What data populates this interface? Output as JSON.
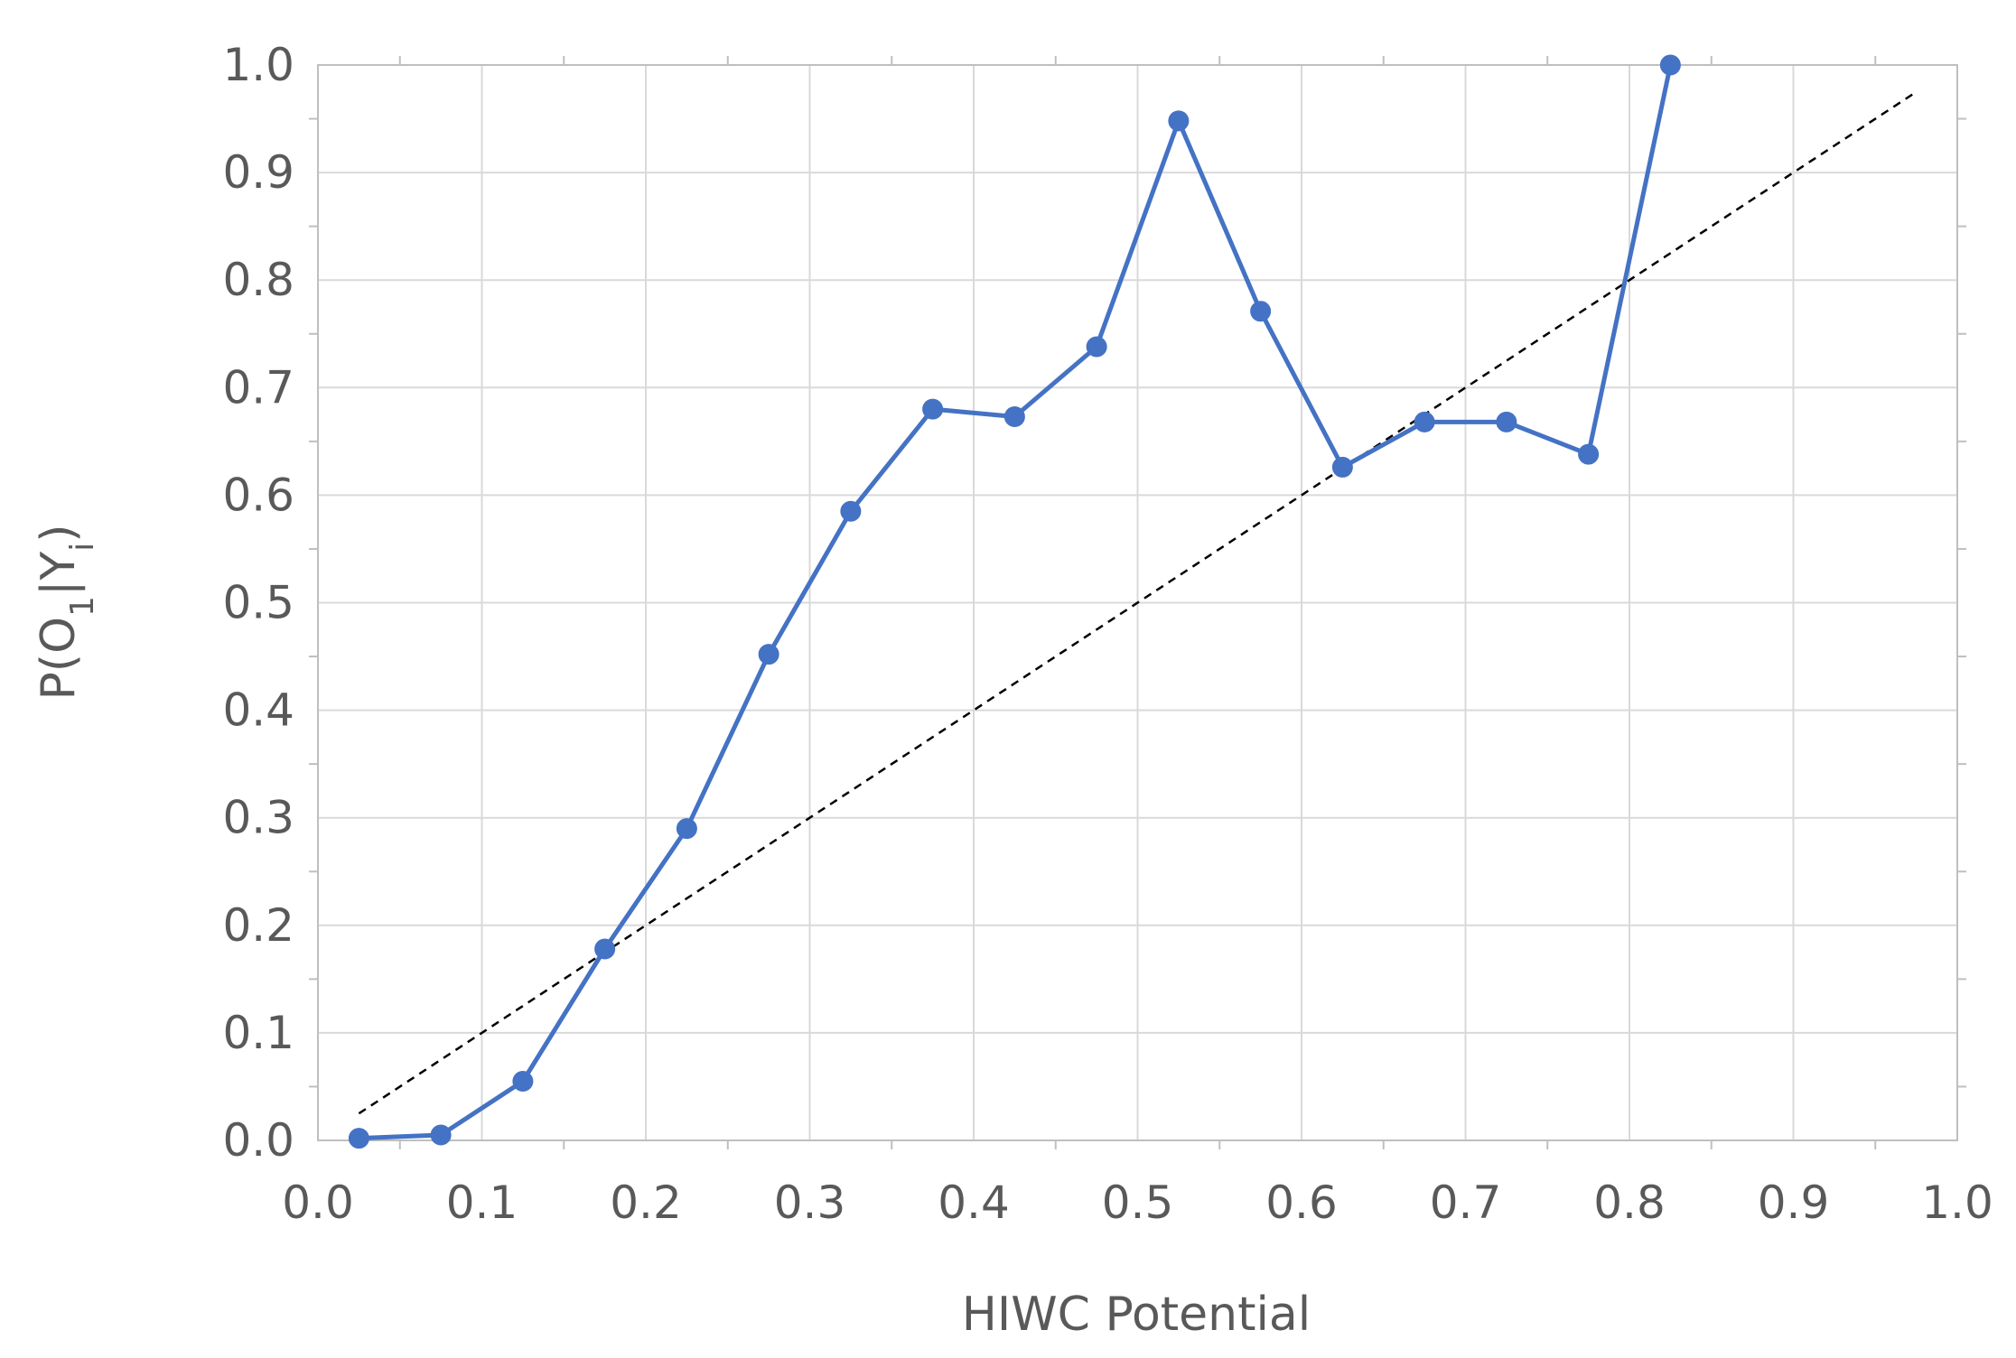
{
  "chart_data": {
    "type": "line",
    "xlabel": "HIWC Potential",
    "ylabel": {
      "prefix": "P(O",
      "sub1": "1",
      "middle": "|Y",
      "sub2": "i",
      "suffix": ")"
    },
    "xlim": [
      0.0,
      1.0
    ],
    "ylim": [
      0.0,
      1.0
    ],
    "x_ticks": [
      "0.0",
      "0.1",
      "0.2",
      "0.3",
      "0.4",
      "0.5",
      "0.6",
      "0.7",
      "0.8",
      "0.9",
      "1.0"
    ],
    "y_ticks": [
      "0.0",
      "0.1",
      "0.2",
      "0.3",
      "0.4",
      "0.5",
      "0.6",
      "0.7",
      "0.8",
      "0.9",
      "1.0"
    ],
    "grid": true,
    "legend": "none",
    "series": [
      {
        "type": "line-with-markers",
        "color": "#4472c4",
        "x": [
          0.025,
          0.075,
          0.125,
          0.175,
          0.225,
          0.275,
          0.325,
          0.375,
          0.425,
          0.475,
          0.525,
          0.575,
          0.625,
          0.675,
          0.725,
          0.775,
          0.825
        ],
        "y": [
          0.002,
          0.005,
          0.055,
          0.178,
          0.29,
          0.452,
          0.585,
          0.68,
          0.673,
          0.738,
          0.948,
          0.771,
          0.626,
          0.668,
          0.668,
          0.638,
          1.0
        ]
      },
      {
        "type": "dashed-reference",
        "color": "#000000",
        "x": [
          0.025,
          0.975
        ],
        "y": [
          0.025,
          0.975
        ]
      }
    ]
  }
}
